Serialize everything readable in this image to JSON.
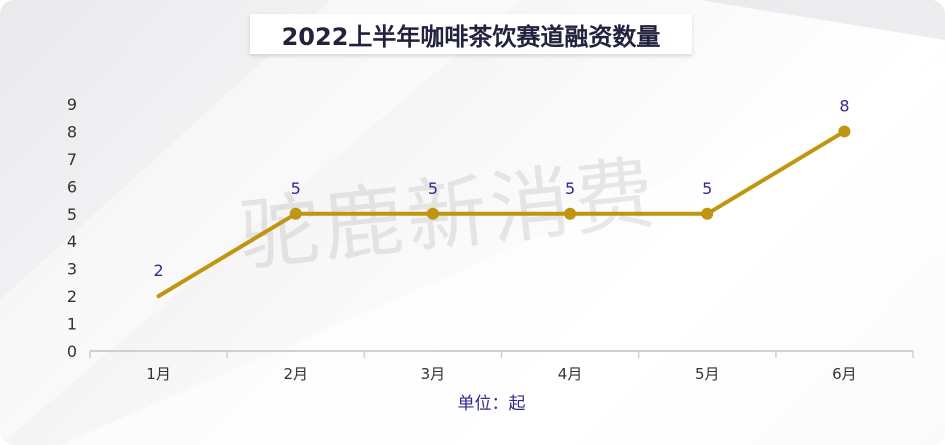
{
  "chart_data": {
    "type": "line",
    "title": "2022上半年咖啡茶饮赛道融资数量",
    "categories": [
      "1月",
      "2月",
      "3月",
      "4月",
      "5月",
      "6月"
    ],
    "values": [
      2,
      5,
      5,
      5,
      5,
      8
    ],
    "data_labels": [
      "2",
      "5",
      "5",
      "5",
      "5",
      "8"
    ],
    "xlabel": "单位：起",
    "ylabel": "",
    "ylim": [
      0,
      9
    ],
    "yticks": [
      "0",
      "1",
      "2",
      "3",
      "4",
      "5",
      "6",
      "7",
      "8",
      "9"
    ],
    "grid": false,
    "legend": "none",
    "colors": {
      "line": "#c0950f",
      "label": "#2f2b8f",
      "axis": "#d0d0d0",
      "tick": "#333333"
    }
  },
  "watermark": "驼鹿新消费"
}
